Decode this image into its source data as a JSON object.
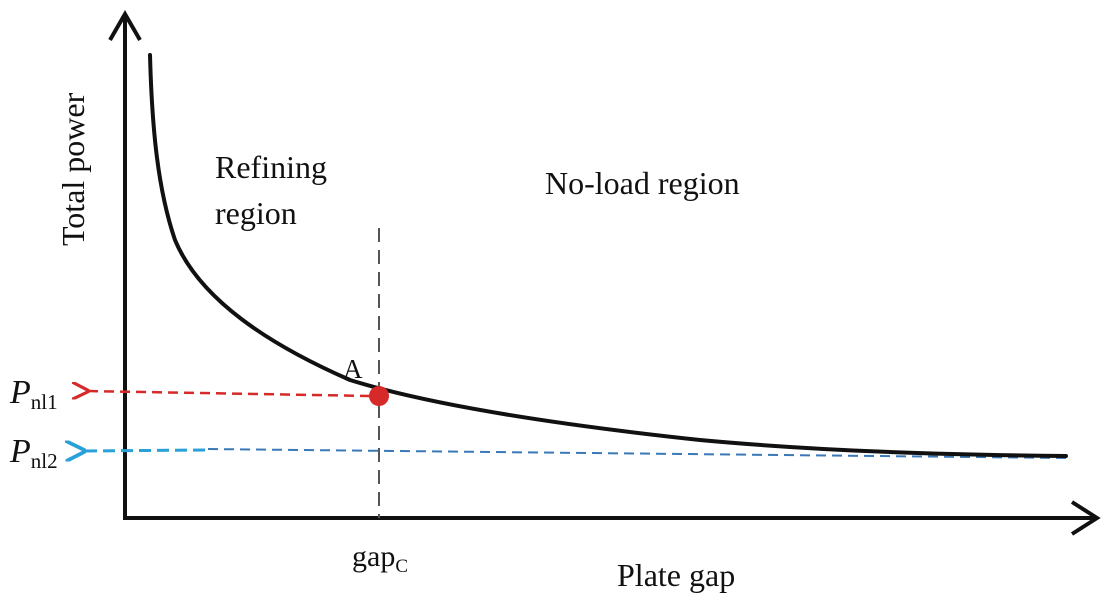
{
  "diagram": {
    "y_axis_label": "Total power",
    "x_axis_label": "Plate gap",
    "region_left_line1": "Refining",
    "region_left_line2": "region",
    "region_right": "No-load region",
    "point_label": "A",
    "gap_label_main": "gap",
    "gap_label_sub": "C",
    "pnl1_main": "P",
    "pnl1_sub": "nl1",
    "pnl2_main": "P",
    "pnl2_sub": "nl2"
  },
  "colors": {
    "curve": "#111111",
    "point": "#d62a2a",
    "pnl1_arrow": "#d62a2a",
    "pnl2_arrow": "#2aa0d8",
    "pnl2_dash": "#3a78b8",
    "divider": "#555555"
  }
}
